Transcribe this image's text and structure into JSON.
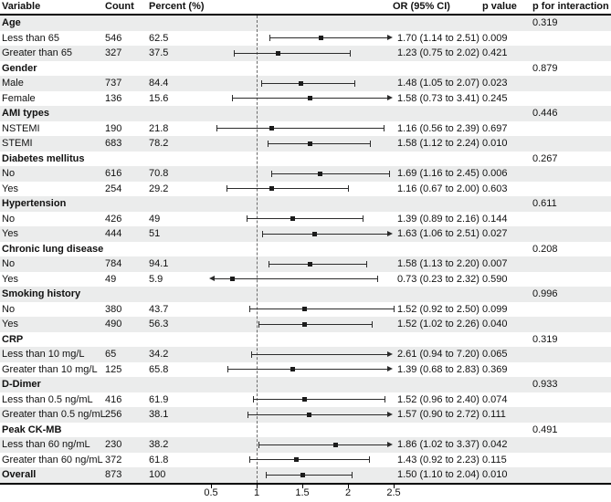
{
  "meta": {
    "columns": {
      "variable": "Variable",
      "count": "Count",
      "percent": "Percent (%)",
      "or_ci": "OR (95% CI)",
      "p_value": "p value",
      "p_interaction": "p for interaction"
    }
  },
  "colors": {
    "row_alt": "#ebecec",
    "line": "#2b2b2b",
    "marker": "#1b1b1b",
    "reference_dash": "#6b6b6b",
    "border": "#000000"
  },
  "chart_data": {
    "type": "forest",
    "title": "",
    "x_axis": {
      "tick_labels": [
        "0.5",
        "1",
        "1.5",
        "2",
        "2.5"
      ],
      "tick_values": [
        0.5,
        1,
        1.5,
        2,
        2.5
      ],
      "range": [
        0.5,
        2.5
      ],
      "reference_line": 1,
      "scale": "linear"
    },
    "rows": [
      {
        "label": "Age",
        "group": true,
        "p_interaction": "0.319"
      },
      {
        "label": "Less than 65",
        "count": "546",
        "percent": "62.5",
        "or": 1.7,
        "lo": 1.14,
        "hi": 2.51,
        "or_text": "1.70 (1.14 to 2.51)",
        "p": "0.009"
      },
      {
        "label": "Greater than 65",
        "count": "327",
        "percent": "37.5",
        "or": 1.23,
        "lo": 0.75,
        "hi": 2.02,
        "or_text": "1.23 (0.75 to 2.02)",
        "p": "0.421"
      },
      {
        "label": "Gender",
        "group": true,
        "p_interaction": "0.879"
      },
      {
        "label": "Male",
        "count": "737",
        "percent": "84.4",
        "or": 1.48,
        "lo": 1.05,
        "hi": 2.07,
        "or_text": "1.48 (1.05 to 2.07)",
        "p": "0.023"
      },
      {
        "label": "Female",
        "count": "136",
        "percent": "15.6",
        "or": 1.58,
        "lo": 0.73,
        "hi": 3.41,
        "or_text": "1.58 (0.73 to 3.41)",
        "p": "0.245"
      },
      {
        "label": "AMI types",
        "group": true,
        "p_interaction": "0.446"
      },
      {
        "label": "NSTEMI",
        "count": "190",
        "percent": "21.8",
        "or": 1.16,
        "lo": 0.56,
        "hi": 2.39,
        "or_text": "1.16 (0.56 to 2.39)",
        "p": "0.697"
      },
      {
        "label": "STEMI",
        "count": "683",
        "percent": "78.2",
        "or": 1.58,
        "lo": 1.12,
        "hi": 2.24,
        "or_text": "1.58 (1.12 to 2.24)",
        "p": "0.010"
      },
      {
        "label": "Diabetes mellitus",
        "group": true,
        "p_interaction": "0.267"
      },
      {
        "label": "No",
        "count": "616",
        "percent": "70.8",
        "or": 1.69,
        "lo": 1.16,
        "hi": 2.45,
        "or_text": "1.69 (1.16 to 2.45)",
        "p": "0.006"
      },
      {
        "label": "Yes",
        "count": "254",
        "percent": "29.2",
        "or": 1.16,
        "lo": 0.67,
        "hi": 2.0,
        "or_text": "1.16 (0.67 to 2.00)",
        "p": "0.603"
      },
      {
        "label": "Hypertension",
        "group": true,
        "p_interaction": "0.611"
      },
      {
        "label": "No",
        "count": "426",
        "percent": "49",
        "or": 1.39,
        "lo": 0.89,
        "hi": 2.16,
        "or_text": "1.39 (0.89 to 2.16)",
        "p": "0.144"
      },
      {
        "label": "Yes",
        "count": "444",
        "percent": "51",
        "or": 1.63,
        "lo": 1.06,
        "hi": 2.51,
        "or_text": "1.63 (1.06 to 2.51)",
        "p": "0.027"
      },
      {
        "label": "Chronic lung disease",
        "group": true,
        "p_interaction": "0.208"
      },
      {
        "label": "No",
        "count": "784",
        "percent": "94.1",
        "or": 1.58,
        "lo": 1.13,
        "hi": 2.2,
        "or_text": "1.58 (1.13 to 2.20)",
        "p": "0.007"
      },
      {
        "label": "Yes",
        "count": "49",
        "percent": "5.9",
        "or": 0.73,
        "lo": 0.23,
        "hi": 2.32,
        "or_text": "0.73 (0.23 to 2.32)",
        "p": "0.590"
      },
      {
        "label": "Smoking history",
        "group": true,
        "p_interaction": "0.996"
      },
      {
        "label": "No",
        "count": "380",
        "percent": "43.7",
        "or": 1.52,
        "lo": 0.92,
        "hi": 2.5,
        "or_text": "1.52 (0.92 to 2.50)",
        "p": "0.099"
      },
      {
        "label": "Yes",
        "count": "490",
        "percent": "56.3",
        "or": 1.52,
        "lo": 1.02,
        "hi": 2.26,
        "or_text": "1.52 (1.02 to 2.26)",
        "p": "0.040"
      },
      {
        "label": "CRP",
        "group": true,
        "p_interaction": "0.319"
      },
      {
        "label": "Less than 10 mg/L",
        "count": "65",
        "percent": "34.2",
        "or": 2.61,
        "lo": 0.94,
        "hi": 7.2,
        "or_text": "2.61 (0.94 to 7.20)",
        "p": "0.065"
      },
      {
        "label": "Greater than 10 mg/L",
        "count": "125",
        "percent": "65.8",
        "or": 1.39,
        "lo": 0.68,
        "hi": 2.83,
        "or_text": "1.39 (0.68 to 2.83)",
        "p": "0.369"
      },
      {
        "label": "D-Dimer",
        "group": true,
        "p_interaction": "0.933"
      },
      {
        "label": "Less than 0.5 ng/mL",
        "count": "416",
        "percent": "61.9",
        "or": 1.52,
        "lo": 0.96,
        "hi": 2.4,
        "or_text": "1.52 (0.96 to 2.40)",
        "p": "0.074"
      },
      {
        "label": "Greater than 0.5 ng/mL",
        "count": "256",
        "percent": "38.1",
        "or": 1.57,
        "lo": 0.9,
        "hi": 2.72,
        "or_text": "1.57 (0.90 to 2.72)",
        "p": "0.111"
      },
      {
        "label": "Peak CK-MB",
        "group": true,
        "p_interaction": "0.491"
      },
      {
        "label": "Less than 60 ng/mL",
        "count": "230",
        "percent": "38.2",
        "or": 1.86,
        "lo": 1.02,
        "hi": 3.37,
        "or_text": "1.86 (1.02 to 3.37)",
        "p": "0.042"
      },
      {
        "label": "Greater than 60 ng/mL",
        "count": "372",
        "percent": "61.8",
        "or": 1.43,
        "lo": 0.92,
        "hi": 2.23,
        "or_text": "1.43 (0.92 to 2.23)",
        "p": "0.115"
      },
      {
        "label": "Overall",
        "bold": true,
        "count": "873",
        "percent": "100",
        "or": 1.5,
        "lo": 1.1,
        "hi": 2.04,
        "or_text": "1.50 (1.10 to 2.04)",
        "p": "0.010"
      }
    ]
  }
}
